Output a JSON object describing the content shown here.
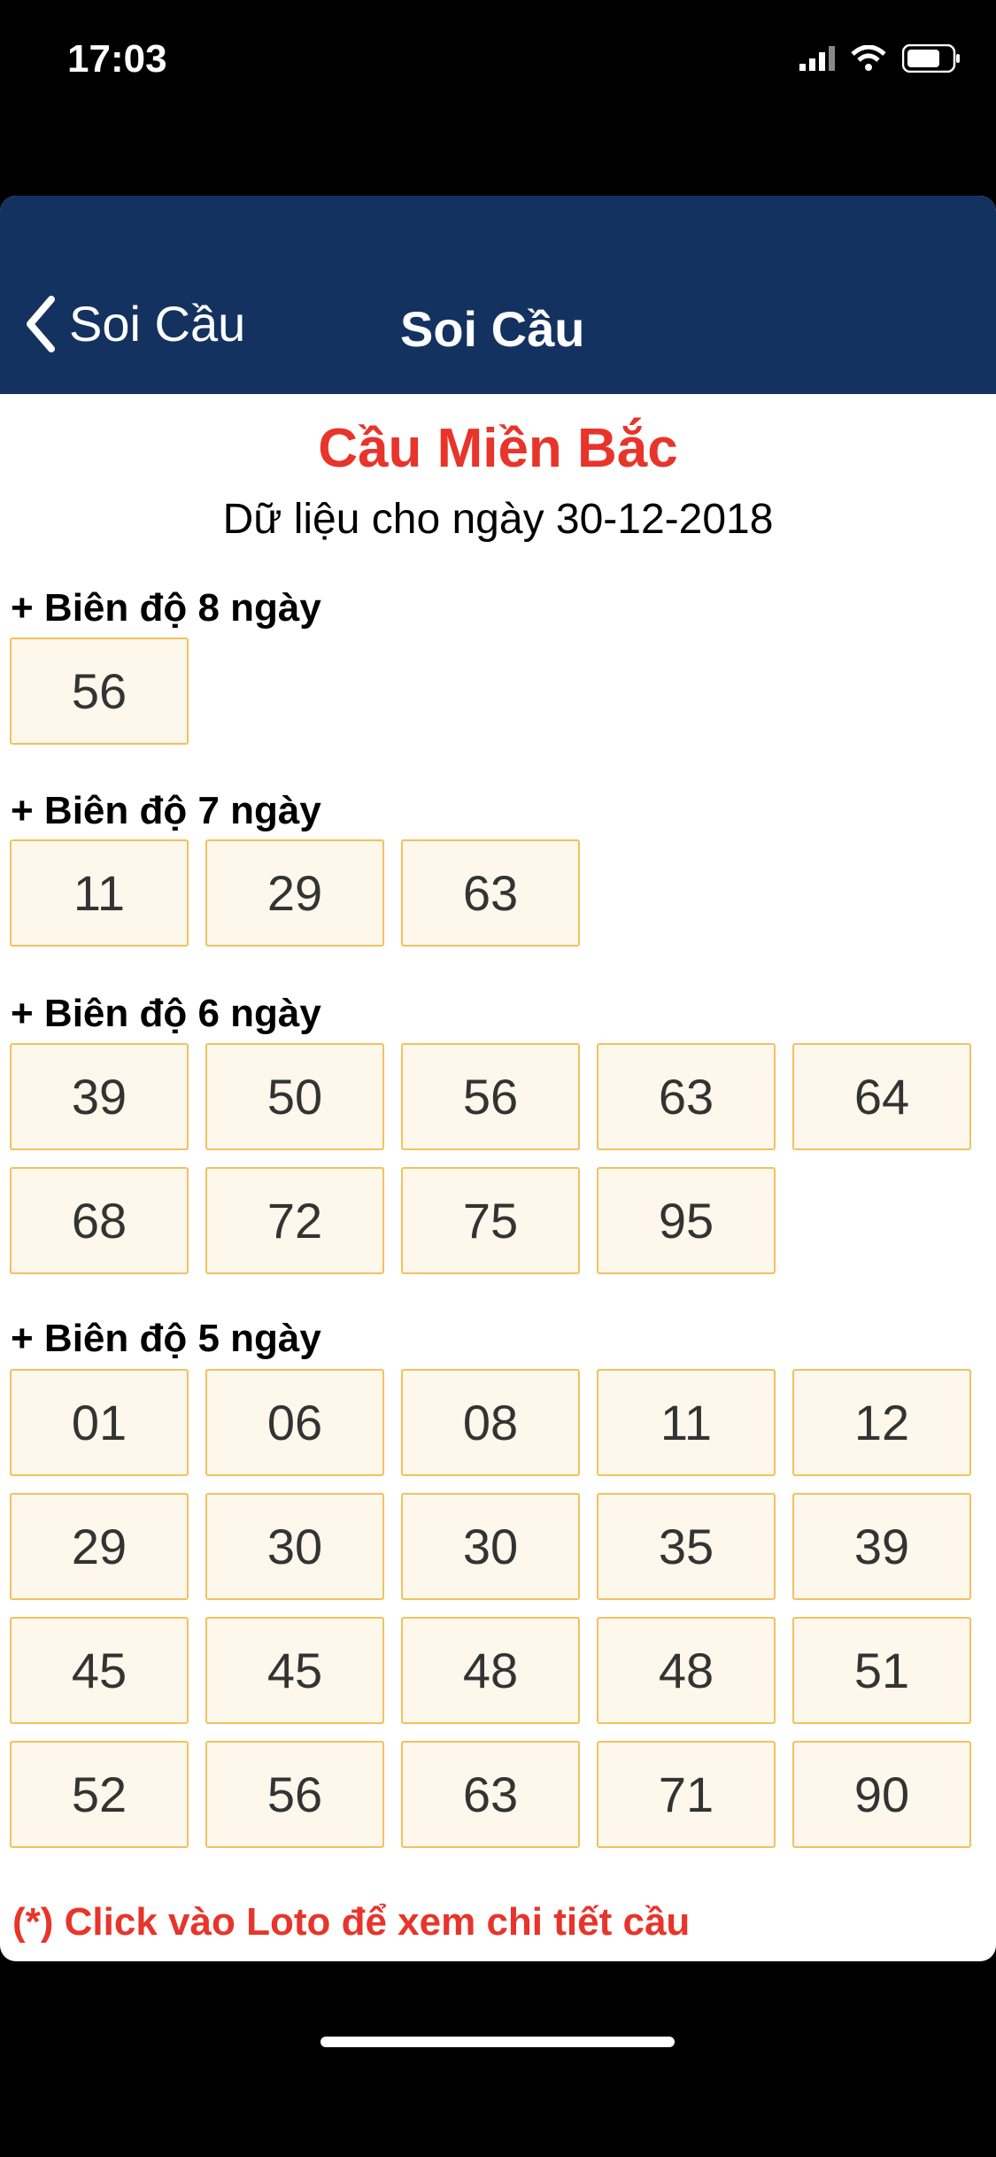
{
  "status_bar": {
    "time": "17:03"
  },
  "nav": {
    "back_label": "Soi Cầu",
    "title": "Soi Cầu"
  },
  "page": {
    "title": "Cầu Miền Bắc",
    "subtitle": "Dữ liệu cho ngày 30-12-2018"
  },
  "sections": [
    {
      "label": "+ Biên độ 8 ngày",
      "numbers": [
        "56"
      ]
    },
    {
      "label": "+ Biên độ 7 ngày",
      "numbers": [
        "11",
        "29",
        "63"
      ]
    },
    {
      "label": "+ Biên độ 6 ngày",
      "numbers": [
        "39",
        "50",
        "56",
        "63",
        "64",
        "68",
        "72",
        "75",
        "95"
      ]
    },
    {
      "label": "+ Biên độ 5 ngày",
      "numbers": [
        "01",
        "06",
        "08",
        "11",
        "12",
        "29",
        "30",
        "30",
        "35",
        "39",
        "45",
        "45",
        "48",
        "48",
        "51",
        "52",
        "56",
        "63",
        "71",
        "90"
      ]
    }
  ],
  "footer_note": "(*) Click vào Loto để xem chi tiết cầu",
  "colors": {
    "nav_bg": "#143260",
    "accent_red": "#e8342a",
    "cell_bg": "#fdf7ec",
    "cell_border": "#f1c25e"
  }
}
